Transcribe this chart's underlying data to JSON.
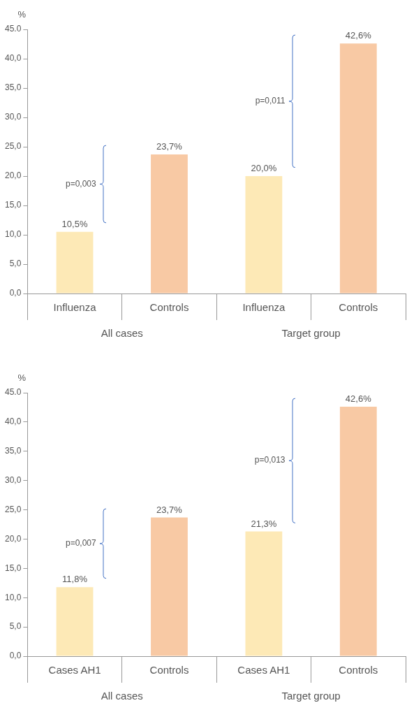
{
  "chart_data": [
    {
      "type": "bar",
      "ylabel": "%",
      "categories": [
        "Influenza",
        "Controls",
        "Influenza",
        "Controls"
      ],
      "values": [
        10.5,
        23.7,
        20.0,
        42.6
      ],
      "colors": [
        "#fde9b6",
        "#f8c9a4",
        "#fde9b6",
        "#f8c9a4"
      ],
      "value_labels": [
        "10,5%",
        "23,7%",
        "20,0%",
        "42,6%"
      ],
      "ylim": [
        0,
        45
      ],
      "yticks": [
        {
          "value": 0,
          "label": "0,0"
        },
        {
          "value": 5,
          "label": "5,0"
        },
        {
          "value": 10,
          "label": "10,0"
        },
        {
          "value": 15,
          "label": "15,0"
        },
        {
          "value": 20,
          "label": "20,0"
        },
        {
          "value": 25,
          "label": "25,0"
        },
        {
          "value": 30,
          "label": "30,0"
        },
        {
          "value": 35,
          "label": "35,0"
        },
        {
          "value": 40,
          "label": "40,0"
        },
        {
          "value": 45,
          "label": "45.0"
        }
      ],
      "annotations": [
        "p=0,003",
        "p=0,011",
        "All cases",
        "Target group"
      ]
    },
    {
      "type": "bar",
      "ylabel": "%",
      "categories": [
        "Cases AH1",
        "Controls",
        "Cases AH1",
        "Controls"
      ],
      "values": [
        11.8,
        23.7,
        21.3,
        42.6
      ],
      "colors": [
        "#fde9b6",
        "#f8c9a4",
        "#fde9b6",
        "#f8c9a4"
      ],
      "value_labels": [
        "11,8%",
        "23,7%",
        "21,3%",
        "42,6%"
      ],
      "ylim": [
        0,
        45
      ],
      "yticks": [
        {
          "value": 0,
          "label": "0,0"
        },
        {
          "value": 5,
          "label": "5,0"
        },
        {
          "value": 10,
          "label": "10,0"
        },
        {
          "value": 15,
          "label": "15,0"
        },
        {
          "value": 20,
          "label": "20,0"
        },
        {
          "value": 25,
          "label": "25,0"
        },
        {
          "value": 30,
          "label": "30,0"
        },
        {
          "value": 35,
          "label": "35,0"
        },
        {
          "value": 40,
          "label": "40,0"
        },
        {
          "value": 45,
          "label": "45.0"
        }
      ],
      "annotations": [
        "p=0,007",
        "p=0,013",
        "All cases",
        "Target group"
      ]
    }
  ]
}
